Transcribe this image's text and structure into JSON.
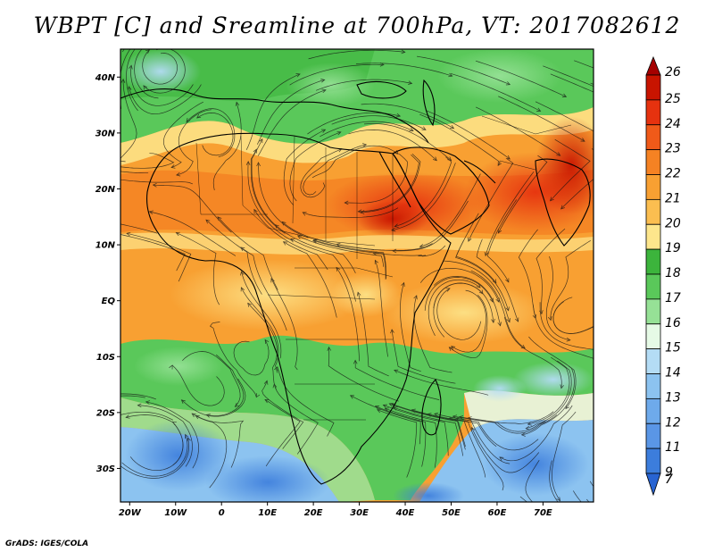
{
  "title": "WBPT [C] and Sreamline at 700hPa, VT: 2017082612",
  "credit": "GrADS: IGES/COLA",
  "map": {
    "lon_range": [
      -22,
      81
    ],
    "lat_range": [
      -36,
      45
    ],
    "lat_ticks": [
      {
        "value": 40,
        "label": "40N"
      },
      {
        "value": 30,
        "label": "30N"
      },
      {
        "value": 20,
        "label": "20N"
      },
      {
        "value": 10,
        "label": "10N"
      },
      {
        "value": 0,
        "label": "EQ"
      },
      {
        "value": -10,
        "label": "10S"
      },
      {
        "value": -20,
        "label": "20S"
      },
      {
        "value": -30,
        "label": "30S"
      }
    ],
    "lon_ticks": [
      {
        "value": -20,
        "label": "20W"
      },
      {
        "value": -10,
        "label": "10W"
      },
      {
        "value": 0,
        "label": "0"
      },
      {
        "value": 10,
        "label": "10E"
      },
      {
        "value": 20,
        "label": "20E"
      },
      {
        "value": 30,
        "label": "30E"
      },
      {
        "value": 40,
        "label": "40E"
      },
      {
        "value": 50,
        "label": "50E"
      },
      {
        "value": 60,
        "label": "60E"
      },
      {
        "value": 70,
        "label": "70E"
      }
    ]
  },
  "colorbar": {
    "levels": [
      {
        "label": "26",
        "color": "#a50000"
      },
      {
        "label": "25",
        "color": "#c81400"
      },
      {
        "label": "24",
        "color": "#e6320f"
      },
      {
        "label": "23",
        "color": "#f05a19"
      },
      {
        "label": "22",
        "color": "#f58223"
      },
      {
        "label": "21",
        "color": "#f8a032"
      },
      {
        "label": "20",
        "color": "#fbbe50"
      },
      {
        "label": "19",
        "color": "#fde68c"
      },
      {
        "label": "18",
        "color": "#3cb43c"
      },
      {
        "label": "17",
        "color": "#5ac85a"
      },
      {
        "label": "16",
        "color": "#96e196"
      },
      {
        "label": "15",
        "color": "#e6fae6"
      },
      {
        "label": "14",
        "color": "#b4dcf5"
      },
      {
        "label": "13",
        "color": "#8cc3f0"
      },
      {
        "label": "12",
        "color": "#6eaaeb"
      },
      {
        "label": "11",
        "color": "#5a96e6"
      },
      {
        "label": "9",
        "color": "#3c7ddc"
      },
      {
        "label": "7",
        "color": "#2864d2"
      }
    ]
  }
}
